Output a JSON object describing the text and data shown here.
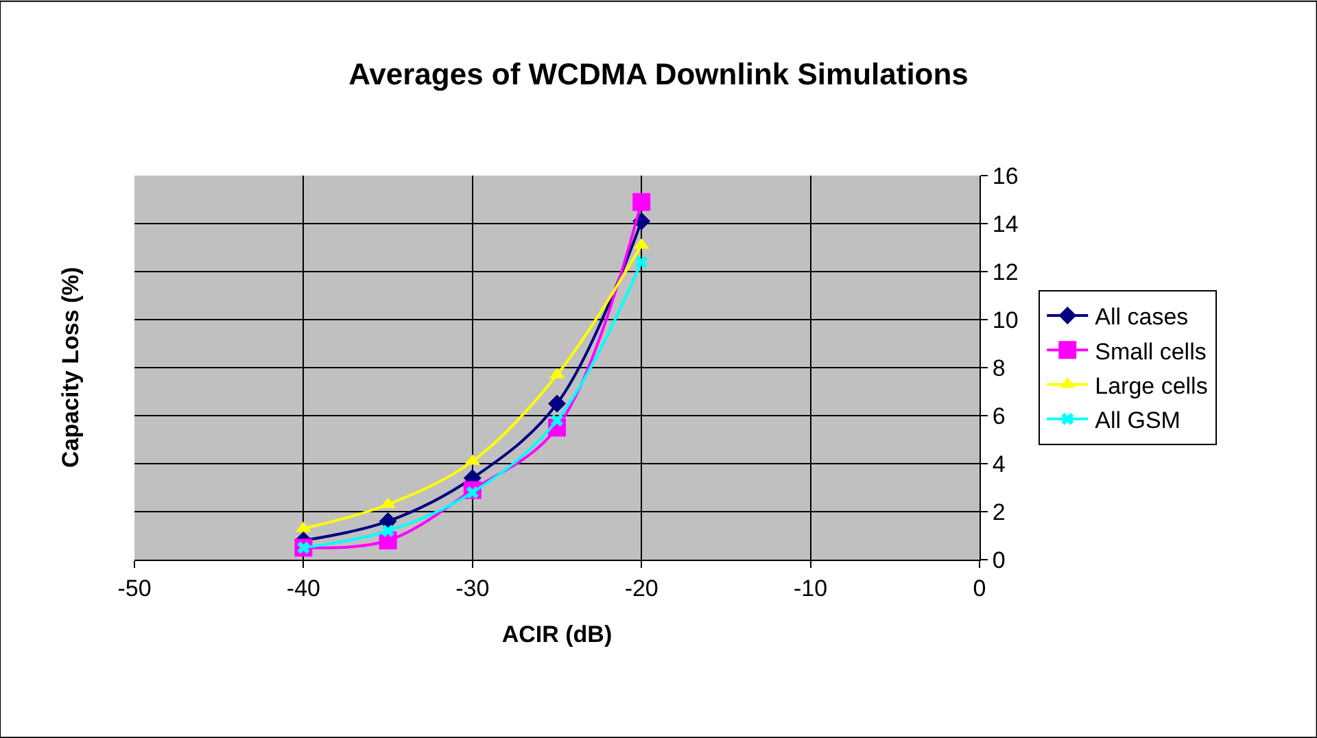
{
  "chart_data": {
    "type": "line",
    "title": "Averages of WCDMA Downlink Simulations",
    "xlabel": "ACIR (dB)",
    "ylabel": "Capacity Loss (%)",
    "x": [
      -40,
      -35,
      -30,
      -25,
      -20
    ],
    "series": [
      {
        "name": "All cases",
        "color": "#000080",
        "marker": "diamond",
        "values": [
          0.8,
          1.6,
          3.4,
          6.5,
          14.1
        ]
      },
      {
        "name": "Small cells",
        "color": "#ff00ff",
        "marker": "square",
        "values": [
          0.5,
          0.8,
          2.9,
          5.5,
          14.9
        ]
      },
      {
        "name": "Large cells",
        "color": "#ffff00",
        "marker": "triangle",
        "values": [
          1.3,
          2.3,
          4.1,
          7.7,
          13.1
        ]
      },
      {
        "name": "All GSM",
        "color": "#00ffff",
        "marker": "cross",
        "values": [
          0.5,
          1.2,
          2.8,
          5.8,
          12.4
        ]
      }
    ],
    "xlim": [
      -50,
      0
    ],
    "xticks": [
      -50,
      -40,
      -30,
      -20,
      -10,
      0
    ],
    "ylim": [
      0,
      16
    ],
    "yticks": [
      0,
      2,
      4,
      6,
      8,
      10,
      12,
      14,
      16
    ],
    "grid": true,
    "legend": "right",
    "line_style": "solid"
  }
}
